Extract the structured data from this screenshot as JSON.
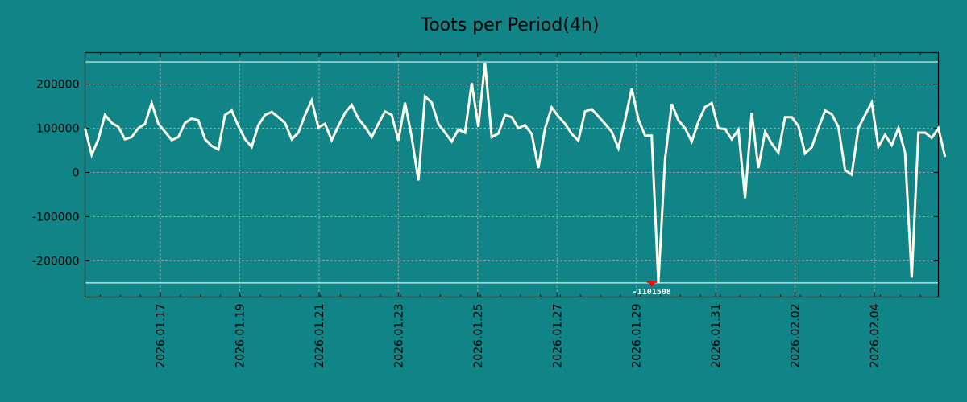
{
  "chart_data": {
    "type": "line",
    "title": "Toots per Period(4h)",
    "xlabel": "",
    "ylabel": "",
    "colors": {
      "background": "#118488",
      "line": "#fffbe8",
      "grid": "#c8a8a8",
      "hline": "#e0f0ee",
      "marker": "#ff0000"
    },
    "xlim": [
      0,
      128
    ],
    "ylim": [
      -282000,
      271000
    ],
    "grid": true,
    "yticks": [
      200000,
      100000,
      0,
      -100000,
      -200000
    ],
    "ytick_labels": [
      "200000",
      "100000",
      "0",
      "-100000",
      "-200000"
    ],
    "xticks": [
      11.3,
      23.2,
      35.1,
      47.0,
      58.9,
      70.8,
      82.7,
      94.6,
      106.5,
      118.4
    ],
    "xtick_labels": [
      "2026.01.17",
      "2026.01.19",
      "2026.01.21",
      "2026.01.23",
      "2026.01.25",
      "2026.01.27",
      "2026.01.29",
      "2026.01.31",
      "2026.02.02",
      "2026.02.04"
    ],
    "hlines": [
      250000,
      -250000
    ],
    "annotation": {
      "index": 85,
      "value": -250000,
      "label": "-1101508"
    },
    "values": [
      100000,
      40000,
      75000,
      130000,
      112000,
      103000,
      75000,
      80000,
      100000,
      110000,
      157000,
      110000,
      92000,
      73000,
      80000,
      112000,
      122000,
      118000,
      75000,
      60000,
      52000,
      130000,
      140000,
      105000,
      75000,
      58000,
      107000,
      130000,
      137000,
      125000,
      112000,
      75000,
      90000,
      130000,
      163000,
      102000,
      110000,
      73000,
      105000,
      135000,
      153000,
      122000,
      103000,
      80000,
      110000,
      138000,
      130000,
      72000,
      158000,
      80000,
      -18000,
      172000,
      158000,
      110000,
      90000,
      70000,
      97000,
      90000,
      202000,
      103000,
      248000,
      80000,
      88000,
      130000,
      125000,
      100000,
      107000,
      87000,
      10000,
      100000,
      147000,
      127000,
      110000,
      87000,
      72000,
      138000,
      143000,
      127000,
      110000,
      92000,
      55000,
      118000,
      190000,
      120000,
      83000,
      83000,
      -250000,
      30000,
      155000,
      118000,
      100000,
      70000,
      115000,
      148000,
      157000,
      100000,
      98000,
      75000,
      97000,
      -58000,
      135000,
      10000,
      92000,
      65000,
      45000,
      125000,
      125000,
      105000,
      43000,
      57000,
      100000,
      140000,
      132000,
      103000,
      5000,
      -5000,
      100000,
      130000,
      158000,
      58000,
      85000,
      62000,
      100000,
      45000,
      -238000,
      90000,
      90000,
      78000,
      100000,
      35000
    ]
  }
}
